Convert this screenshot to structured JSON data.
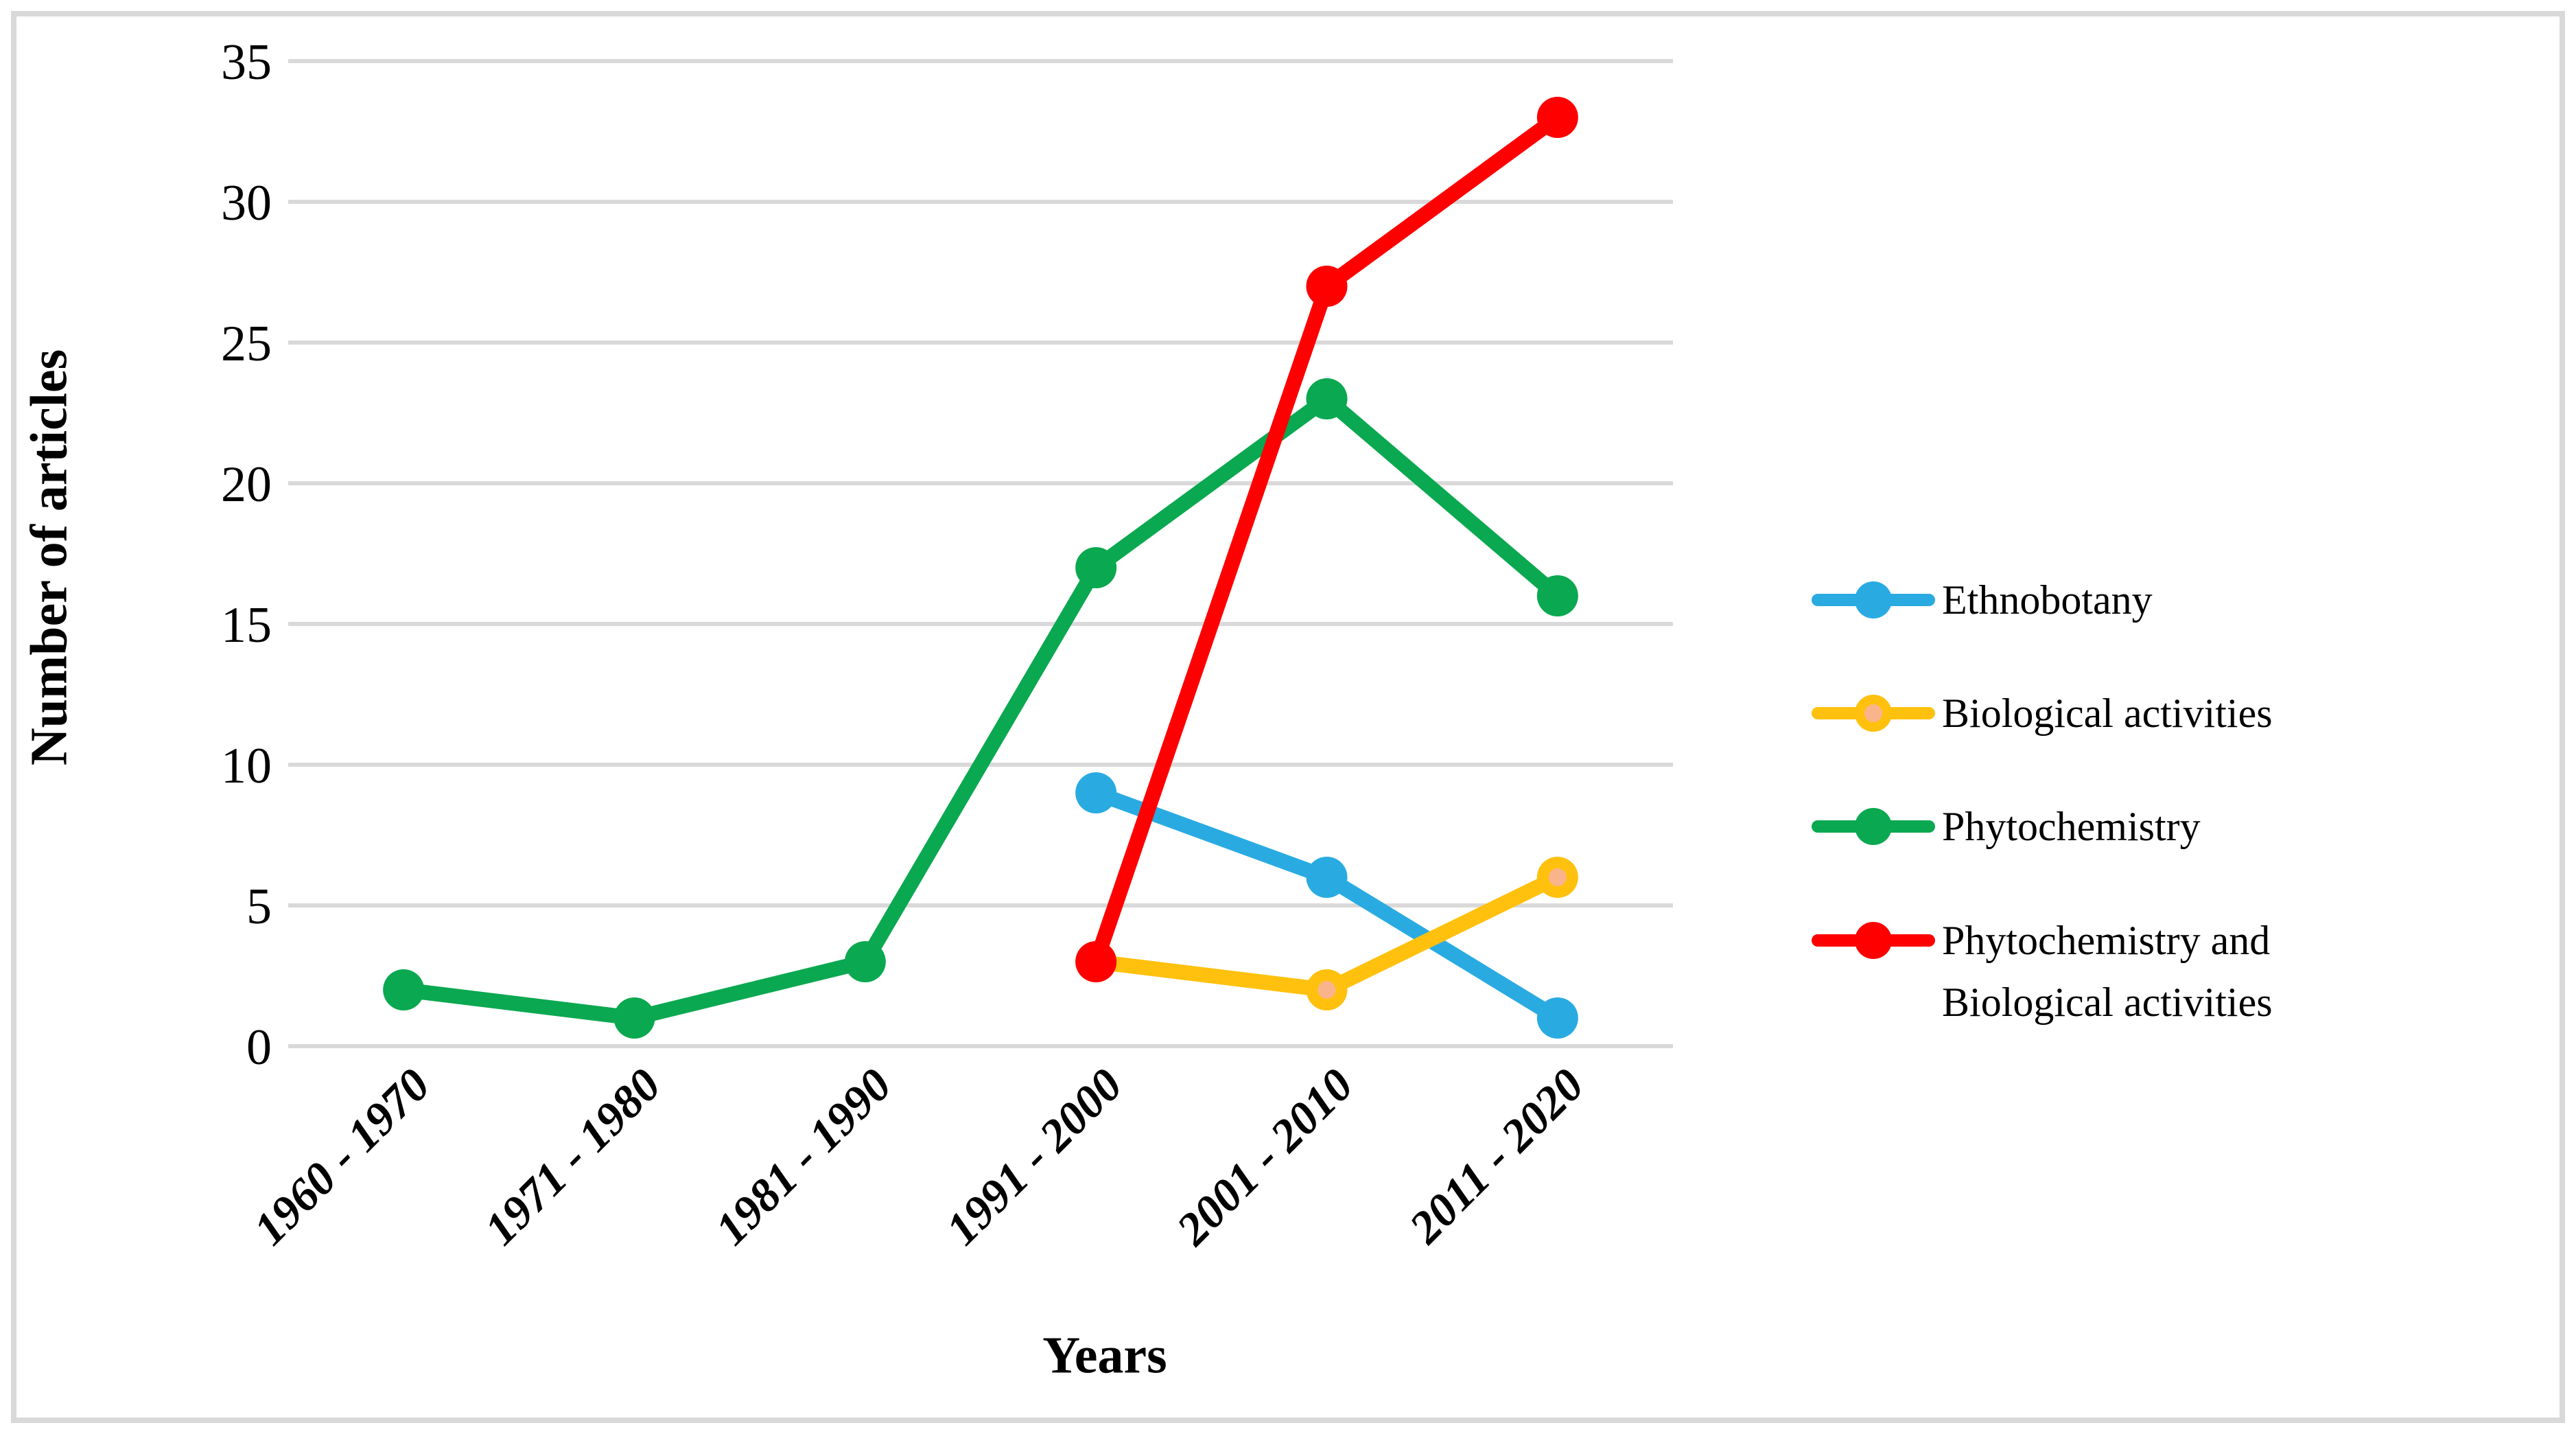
{
  "figure": {
    "background_color": "#FFFFFF",
    "frame_border_color": "#D9D9D9"
  },
  "chart_data": {
    "type": "line",
    "title": "",
    "xlabel": "Years",
    "ylabel": "Number of articles",
    "categories": [
      "1960 - 1970",
      "1971 - 1980",
      "1981 - 1990",
      "1991 - 2000",
      "2001 - 2010",
      "2011 - 2020"
    ],
    "ylim": [
      0,
      35
    ],
    "ytick_step": 5,
    "yticks": [
      0,
      5,
      10,
      15,
      20,
      25,
      30,
      35
    ],
    "grid": true,
    "gridline_color": "#D9D9D9",
    "axis_text_color": "#000000",
    "legend_position": "right",
    "series": [
      {
        "name": "Ethnobotany",
        "color": "#29ABE2",
        "values": [
          null,
          null,
          null,
          9,
          6,
          1
        ]
      },
      {
        "name": "Biological activities",
        "color": "#FFC10E",
        "marker_center_color": "#F9B48C",
        "values": [
          null,
          null,
          null,
          3,
          2,
          6
        ]
      },
      {
        "name": "Phytochemistry",
        "color": "#0AA850",
        "values": [
          2,
          1,
          3,
          17,
          23,
          16
        ]
      },
      {
        "name": "Phytochemistry and Biological activities",
        "legend_lines": [
          "Phytochemistry and",
          "Biological activities"
        ],
        "color": "#FF0000",
        "values": [
          null,
          null,
          null,
          3,
          27,
          33
        ]
      }
    ]
  }
}
